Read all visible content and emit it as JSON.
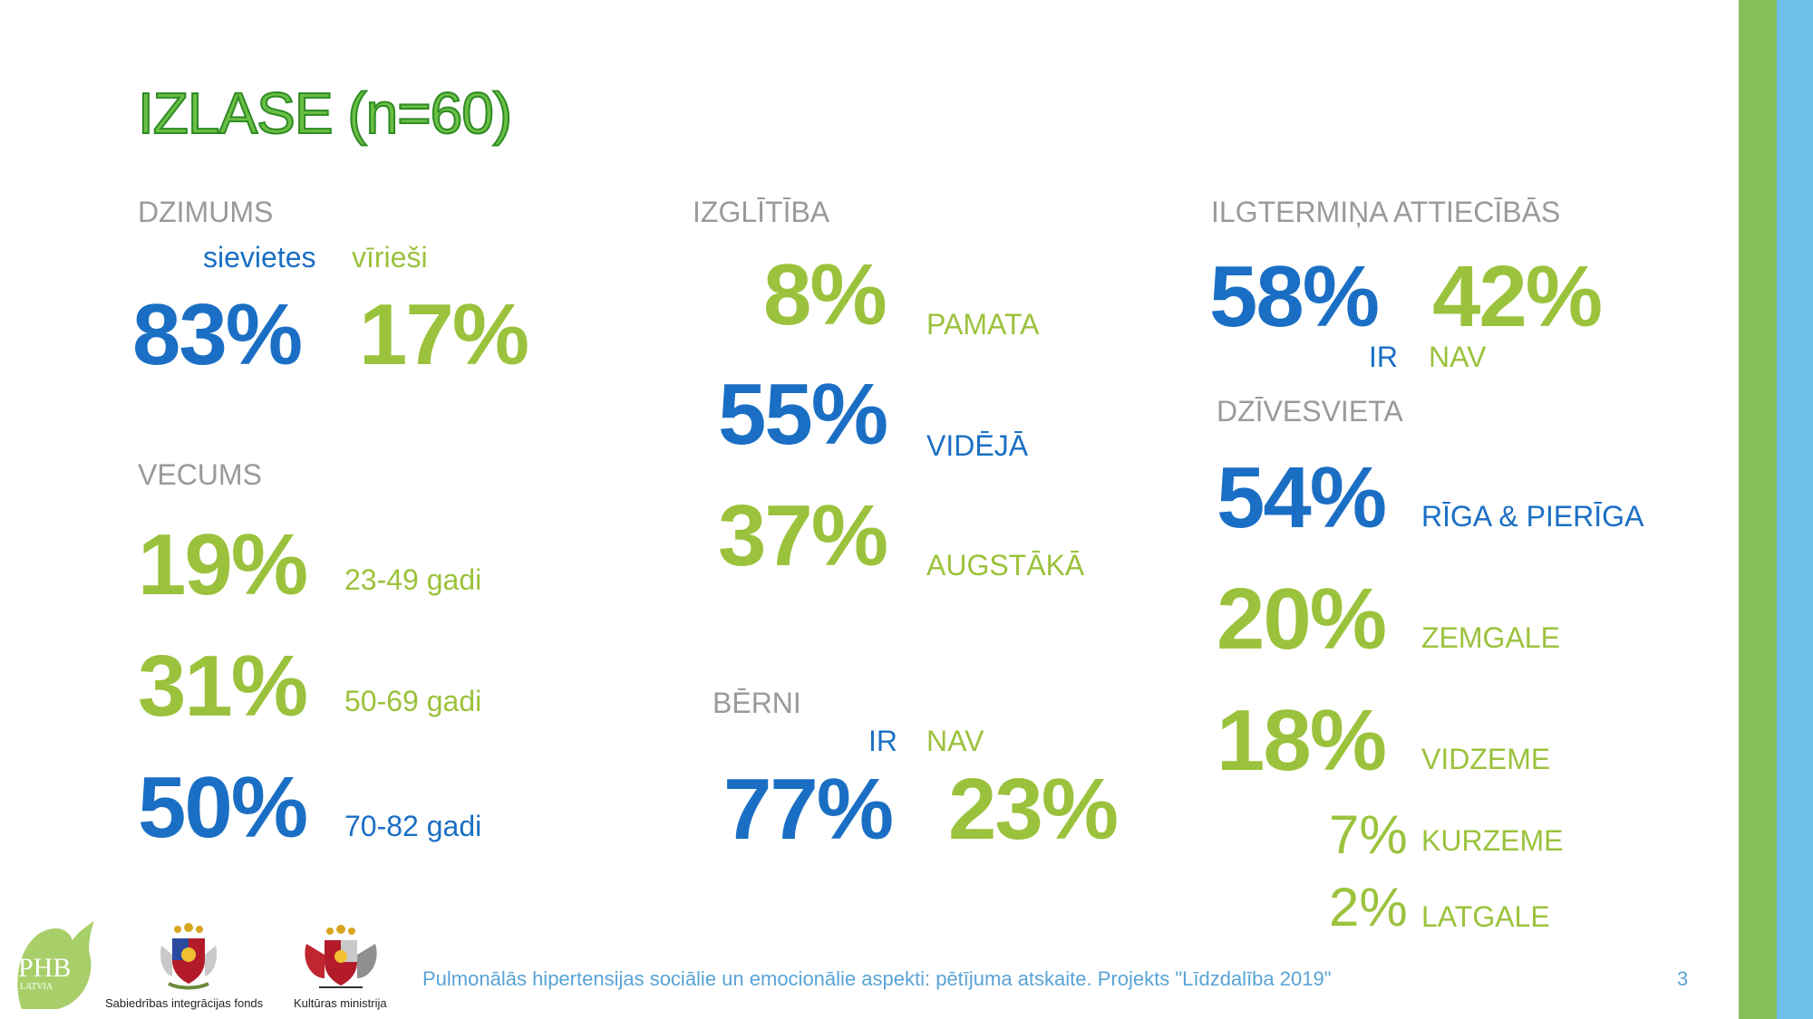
{
  "title": "IZLASE (n=60)",
  "gender": {
    "heading": "DZIMUMS",
    "female_label": "sievietes",
    "male_label": "vīrieši",
    "female_pct": "83%",
    "male_pct": "17%"
  },
  "age": {
    "heading": "VECUMS",
    "rows": [
      {
        "pct": "19%",
        "label": "23-49 gadi"
      },
      {
        "pct": "31%",
        "label": "50-69 gadi"
      },
      {
        "pct": "50%",
        "label": "70-82 gadi"
      }
    ]
  },
  "education": {
    "heading": "IZGLĪTĪBA",
    "rows": [
      {
        "pct": "8%",
        "label": "PAMATA"
      },
      {
        "pct": "55%",
        "label": "VIDĒJĀ"
      },
      {
        "pct": "37%",
        "label": "AUGSTĀKĀ"
      }
    ]
  },
  "children": {
    "heading": "BĒRNI",
    "yes_label": "IR",
    "no_label": "NAV",
    "yes_pct": "77%",
    "no_pct": "23%"
  },
  "relationship": {
    "heading": "ILGTERMIŅA ATTIECĪBĀS",
    "yes_pct": "58%",
    "no_pct": "42%",
    "yes_label": "IR",
    "no_label": "NAV"
  },
  "residence": {
    "heading": "DZĪVESVIETA",
    "rows": [
      {
        "pct": "54%",
        "label": "RĪGA & PIERĪGA"
      },
      {
        "pct": "20%",
        "label": "ZEMGALE"
      },
      {
        "pct": "18%",
        "label": "VIDZEME"
      },
      {
        "pct": "7%",
        "label": "KURZEME"
      },
      {
        "pct": "2%",
        "label": "LATGALE"
      }
    ]
  },
  "footer": {
    "text": "Pulmonālās hipertensijas sociālie un emocionālie aspekti: pētījuma atskaite. Projekts \"Līdzdalība 2019\"",
    "page_number": "3"
  },
  "logos": {
    "phb": "PHB",
    "phb_sub": "LATVIA",
    "sif_caption": "Sabiedrības integrācijas fonds",
    "km_caption": "Kultūras ministrija"
  },
  "colors": {
    "blue": "#1a6fc4",
    "green": "#9bc23c",
    "title_green": "#6abf45",
    "side_green": "#86bf5a",
    "side_blue": "#6cc0ea"
  }
}
